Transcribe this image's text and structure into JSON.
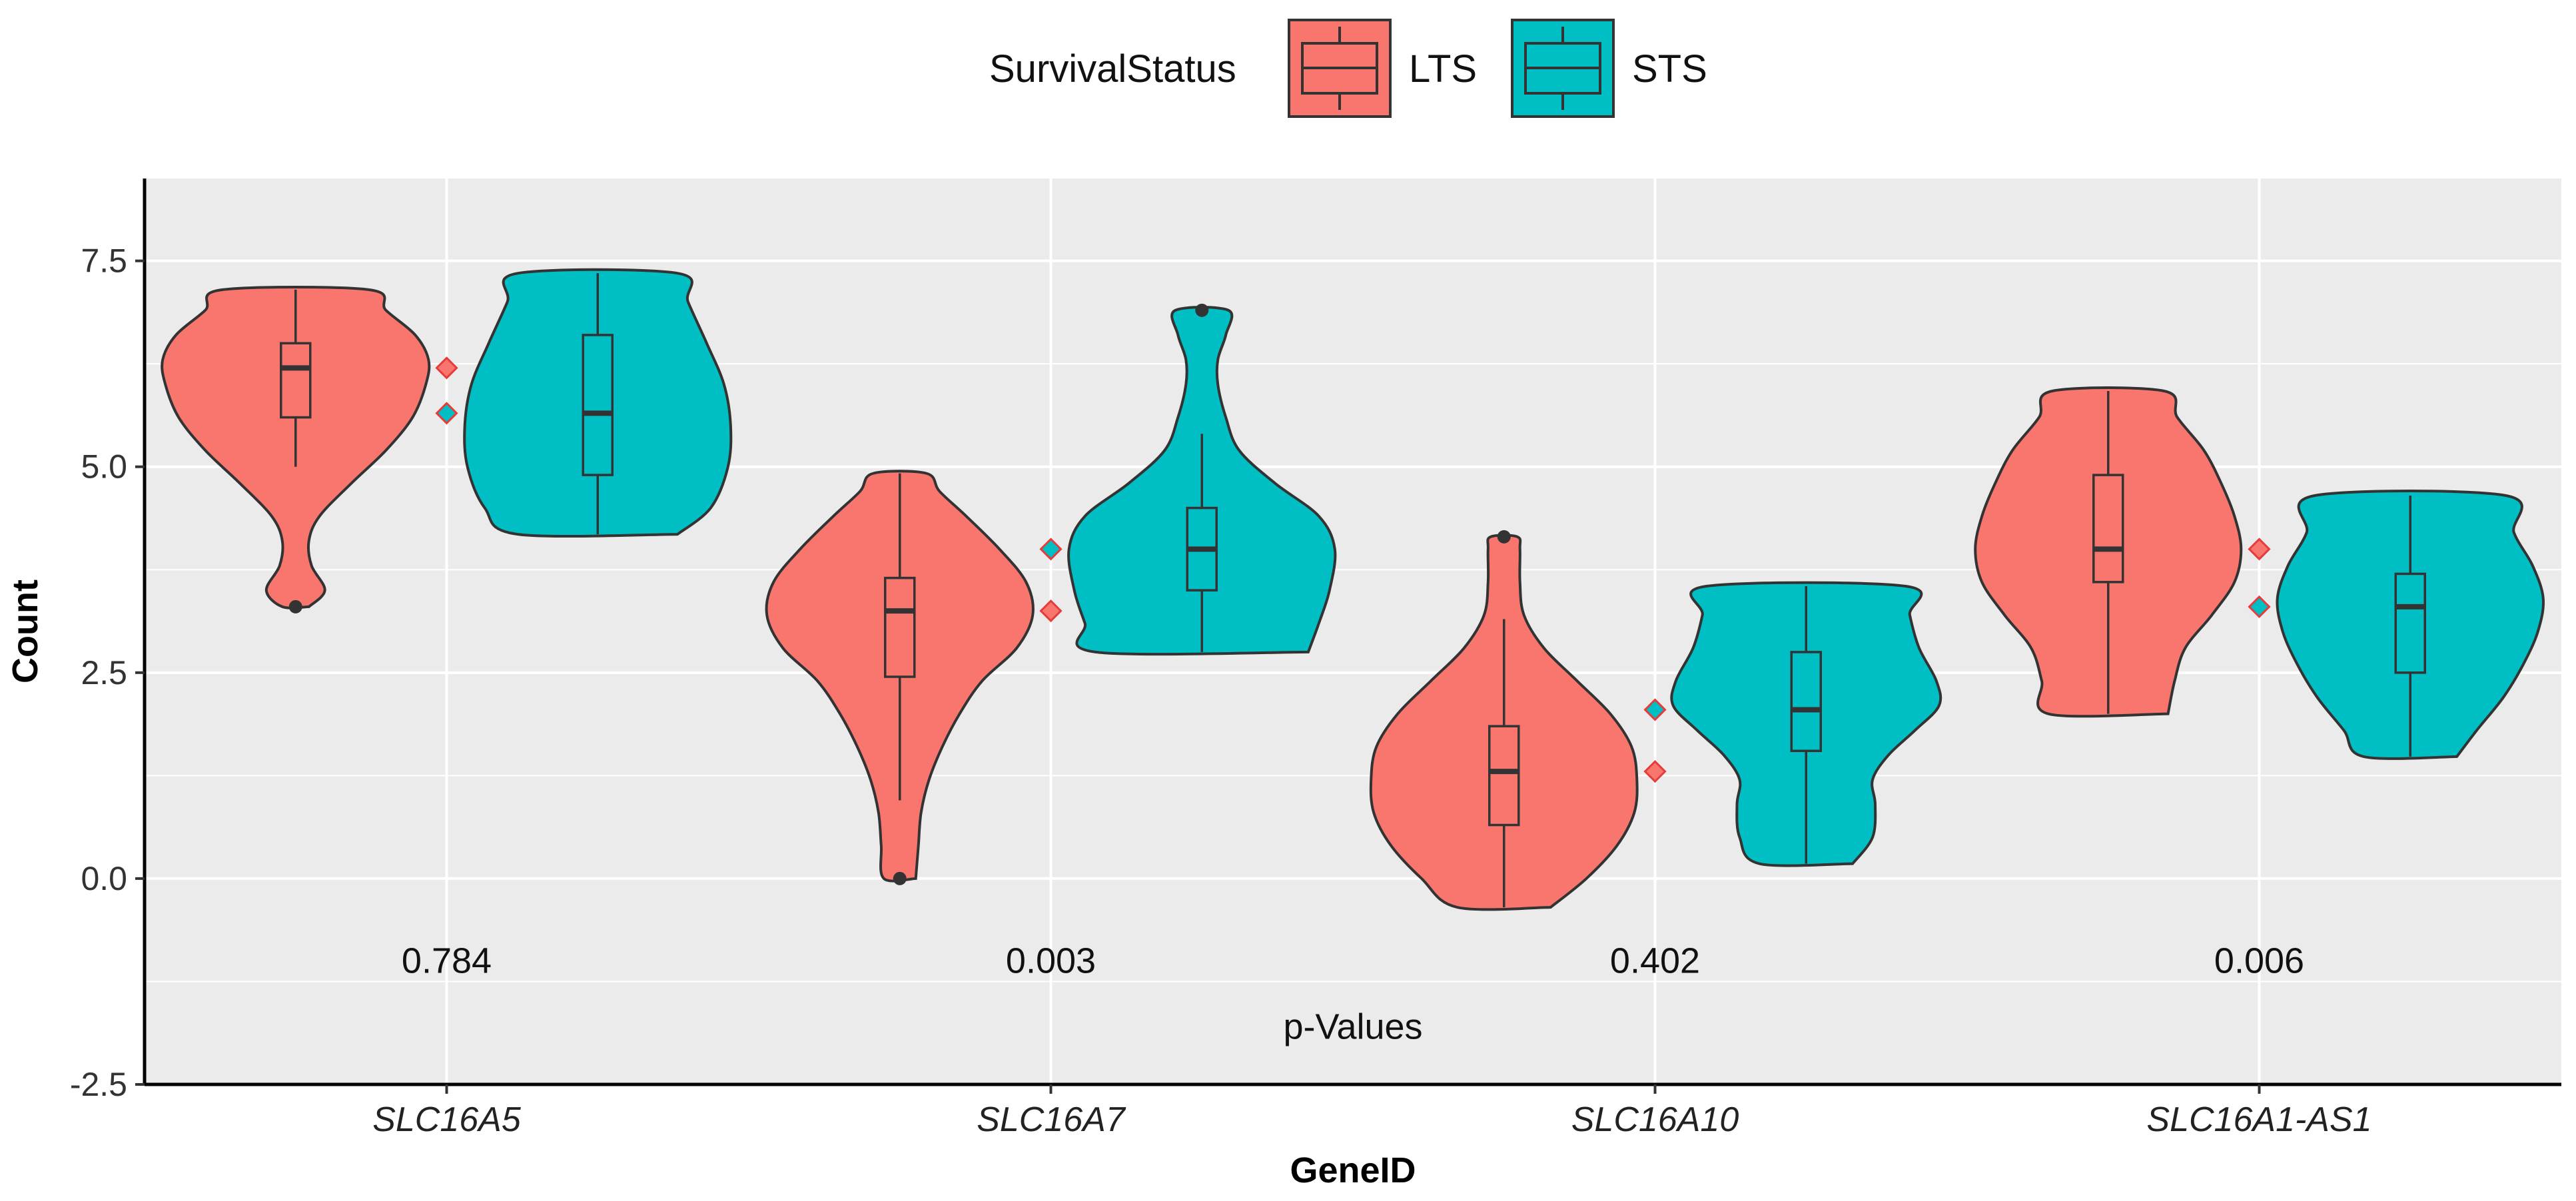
{
  "chart_data": {
    "type": "violin",
    "xlabel": "GeneID",
    "ylabel": "Count",
    "ylim": [
      -2.5,
      8.5
    ],
    "yticks": [
      -2.5,
      0.0,
      2.5,
      5.0,
      7.5
    ],
    "ytick_labels": [
      "-2.5",
      "0.0",
      "2.5",
      "5.0",
      "7.5"
    ],
    "grid": true,
    "categories": [
      "SLC16A5",
      "SLC16A7",
      "SLC16A10",
      "SLC16A1-AS1"
    ],
    "legend": {
      "title": "SurvivalStatus",
      "position": "top",
      "entries": [
        {
          "name": "LTS",
          "color": "#F8766D"
        },
        {
          "name": "STS",
          "color": "#00BFC4"
        }
      ]
    },
    "series": [
      {
        "name": "LTS",
        "color": "#F8766D",
        "violins": [
          {
            "min": 3.3,
            "max": 7.15,
            "q1": 5.6,
            "median": 6.2,
            "q3": 6.5,
            "whisker_low": 5.0,
            "whisker_high": 7.15,
            "outliers": [
              3.3
            ],
            "mean": 6.2,
            "profile": [
              [
                3.3,
                0.1
              ],
              [
                3.5,
                0.22
              ],
              [
                3.8,
                0.12
              ],
              [
                4.1,
                0.1
              ],
              [
                4.4,
                0.18
              ],
              [
                4.8,
                0.42
              ],
              [
                5.2,
                0.68
              ],
              [
                5.6,
                0.88
              ],
              [
                6.0,
                0.98
              ],
              [
                6.3,
                1.0
              ],
              [
                6.6,
                0.9
              ],
              [
                6.9,
                0.68
              ],
              [
                7.15,
                0.55
              ]
            ]
          },
          {
            "min": 0.0,
            "max": 4.92,
            "q1": 2.45,
            "median": 3.25,
            "q3": 3.65,
            "whisker_low": 0.95,
            "whisker_high": 4.92,
            "outliers": [
              0.0
            ],
            "mean": 3.25,
            "profile": [
              [
                0.0,
                0.12
              ],
              [
                0.4,
                0.14
              ],
              [
                0.8,
                0.16
              ],
              [
                1.2,
                0.22
              ],
              [
                1.6,
                0.32
              ],
              [
                2.0,
                0.45
              ],
              [
                2.4,
                0.62
              ],
              [
                2.8,
                0.88
              ],
              [
                3.2,
                1.0
              ],
              [
                3.6,
                0.95
              ],
              [
                4.0,
                0.75
              ],
              [
                4.4,
                0.5
              ],
              [
                4.7,
                0.3
              ],
              [
                4.92,
                0.2
              ]
            ]
          },
          {
            "min": -0.35,
            "max": 4.15,
            "q1": 0.65,
            "median": 1.3,
            "q3": 1.85,
            "whisker_low": -0.35,
            "whisker_high": 3.15,
            "outliers": [
              4.15
            ],
            "mean": 1.3,
            "profile": [
              [
                -0.35,
                0.35
              ],
              [
                0.0,
                0.62
              ],
              [
                0.4,
                0.85
              ],
              [
                0.8,
                0.98
              ],
              [
                1.2,
                1.0
              ],
              [
                1.6,
                0.96
              ],
              [
                2.0,
                0.8
              ],
              [
                2.4,
                0.55
              ],
              [
                2.8,
                0.3
              ],
              [
                3.2,
                0.15
              ],
              [
                3.6,
                0.12
              ],
              [
                4.0,
                0.12
              ],
              [
                4.15,
                0.1
              ]
            ]
          },
          {
            "min": 2.0,
            "max": 5.92,
            "q1": 3.6,
            "median": 4.0,
            "q3": 4.9,
            "whisker_low": 2.0,
            "whisker_high": 5.92,
            "outliers": [],
            "mean": 4.0,
            "profile": [
              [
                2.0,
                0.45
              ],
              [
                2.4,
                0.5
              ],
              [
                2.8,
                0.58
              ],
              [
                3.2,
                0.78
              ],
              [
                3.6,
                0.95
              ],
              [
                4.0,
                1.0
              ],
              [
                4.4,
                0.95
              ],
              [
                4.8,
                0.85
              ],
              [
                5.2,
                0.72
              ],
              [
                5.6,
                0.52
              ],
              [
                5.92,
                0.42
              ]
            ]
          }
        ]
      },
      {
        "name": "STS",
        "color": "#00BFC4",
        "violins": [
          {
            "min": 4.18,
            "max": 7.35,
            "q1": 4.9,
            "median": 5.65,
            "q3": 6.6,
            "whisker_low": 4.18,
            "whisker_high": 7.35,
            "outliers": [],
            "mean": 5.65,
            "profile": [
              [
                4.18,
                0.6
              ],
              [
                4.5,
                0.85
              ],
              [
                5.0,
                0.98
              ],
              [
                5.5,
                1.0
              ],
              [
                6.0,
                0.95
              ],
              [
                6.5,
                0.82
              ],
              [
                7.0,
                0.68
              ],
              [
                7.35,
                0.6
              ]
            ]
          },
          {
            "min": 2.75,
            "max": 6.9,
            "q1": 3.5,
            "median": 4.0,
            "q3": 4.5,
            "whisker_low": 2.75,
            "whisker_high": 5.4,
            "outliers": [
              6.9
            ],
            "mean": 4.0,
            "profile": [
              [
                2.75,
                0.8
              ],
              [
                3.1,
                0.88
              ],
              [
                3.5,
                0.96
              ],
              [
                4.0,
                1.0
              ],
              [
                4.4,
                0.88
              ],
              [
                4.8,
                0.55
              ],
              [
                5.2,
                0.28
              ],
              [
                5.6,
                0.18
              ],
              [
                6.0,
                0.12
              ],
              [
                6.3,
                0.12
              ],
              [
                6.6,
                0.18
              ],
              [
                6.9,
                0.2
              ]
            ]
          },
          {
            "min": 0.18,
            "max": 3.55,
            "q1": 1.55,
            "median": 2.05,
            "q3": 2.75,
            "whisker_low": 0.18,
            "whisker_high": 3.55,
            "outliers": [],
            "mean": 2.05,
            "profile": [
              [
                0.18,
                0.35
              ],
              [
                0.5,
                0.5
              ],
              [
                0.9,
                0.52
              ],
              [
                1.2,
                0.5
              ],
              [
                1.5,
                0.62
              ],
              [
                1.8,
                0.82
              ],
              [
                2.1,
                1.0
              ],
              [
                2.4,
                0.98
              ],
              [
                2.8,
                0.85
              ],
              [
                3.2,
                0.78
              ],
              [
                3.55,
                0.75
              ]
            ]
          },
          {
            "min": 1.48,
            "max": 4.65,
            "q1": 2.5,
            "median": 3.3,
            "q3": 3.7,
            "whisker_low": 1.48,
            "whisker_high": 4.65,
            "outliers": [],
            "mean": 3.3,
            "profile": [
              [
                1.48,
                0.35
              ],
              [
                1.8,
                0.5
              ],
              [
                2.2,
                0.7
              ],
              [
                2.6,
                0.85
              ],
              [
                3.0,
                0.96
              ],
              [
                3.4,
                1.0
              ],
              [
                3.8,
                0.92
              ],
              [
                4.2,
                0.78
              ],
              [
                4.65,
                0.72
              ]
            ]
          }
        ]
      }
    ],
    "annotations": {
      "p_values": [
        "0.784",
        "0.003",
        "0.402",
        "0.006"
      ],
      "p_value_y": -1.0,
      "label": "p-Values",
      "label_y": -1.8
    }
  }
}
